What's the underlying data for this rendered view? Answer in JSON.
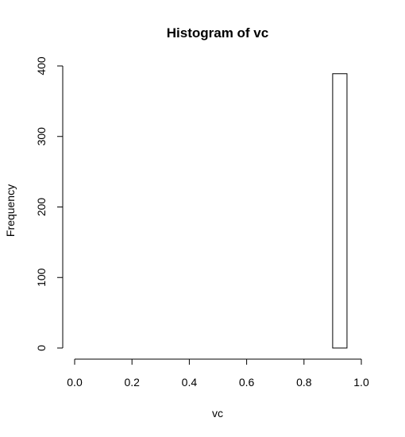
{
  "chart_data": {
    "type": "bar",
    "title": "Histogram of vc",
    "xlabel": "vc",
    "ylabel": "Frequency",
    "xlim": [
      0.0,
      1.0
    ],
    "ylim": [
      0,
      400
    ],
    "x_ticks": [
      "0.0",
      "0.2",
      "0.4",
      "0.6",
      "0.8",
      "1.0"
    ],
    "y_ticks": [
      "0",
      "100",
      "200",
      "300",
      "400"
    ],
    "bins": [
      {
        "start": 0.0,
        "end": 0.05,
        "count": 0
      },
      {
        "start": 0.05,
        "end": 0.1,
        "count": 0
      },
      {
        "start": 0.1,
        "end": 0.15,
        "count": 0
      },
      {
        "start": 0.15,
        "end": 0.2,
        "count": 0
      },
      {
        "start": 0.2,
        "end": 0.25,
        "count": 0
      },
      {
        "start": 0.25,
        "end": 0.3,
        "count": 0
      },
      {
        "start": 0.3,
        "end": 0.35,
        "count": 0
      },
      {
        "start": 0.35,
        "end": 0.4,
        "count": 0
      },
      {
        "start": 0.4,
        "end": 0.45,
        "count": 0
      },
      {
        "start": 0.45,
        "end": 0.5,
        "count": 0
      },
      {
        "start": 0.5,
        "end": 0.55,
        "count": 0
      },
      {
        "start": 0.55,
        "end": 0.6,
        "count": 0
      },
      {
        "start": 0.6,
        "end": 0.65,
        "count": 0
      },
      {
        "start": 0.65,
        "end": 0.7,
        "count": 0
      },
      {
        "start": 0.7,
        "end": 0.75,
        "count": 0
      },
      {
        "start": 0.75,
        "end": 0.8,
        "count": 0
      },
      {
        "start": 0.8,
        "end": 0.85,
        "count": 0
      },
      {
        "start": 0.85,
        "end": 0.9,
        "count": 0
      },
      {
        "start": 0.9,
        "end": 0.95,
        "count": 389
      },
      {
        "start": 0.95,
        "end": 1.0,
        "count": 0
      }
    ],
    "grid": false,
    "colors": {
      "bar_fill": "#ffffff",
      "bar_stroke": "#000000"
    }
  }
}
